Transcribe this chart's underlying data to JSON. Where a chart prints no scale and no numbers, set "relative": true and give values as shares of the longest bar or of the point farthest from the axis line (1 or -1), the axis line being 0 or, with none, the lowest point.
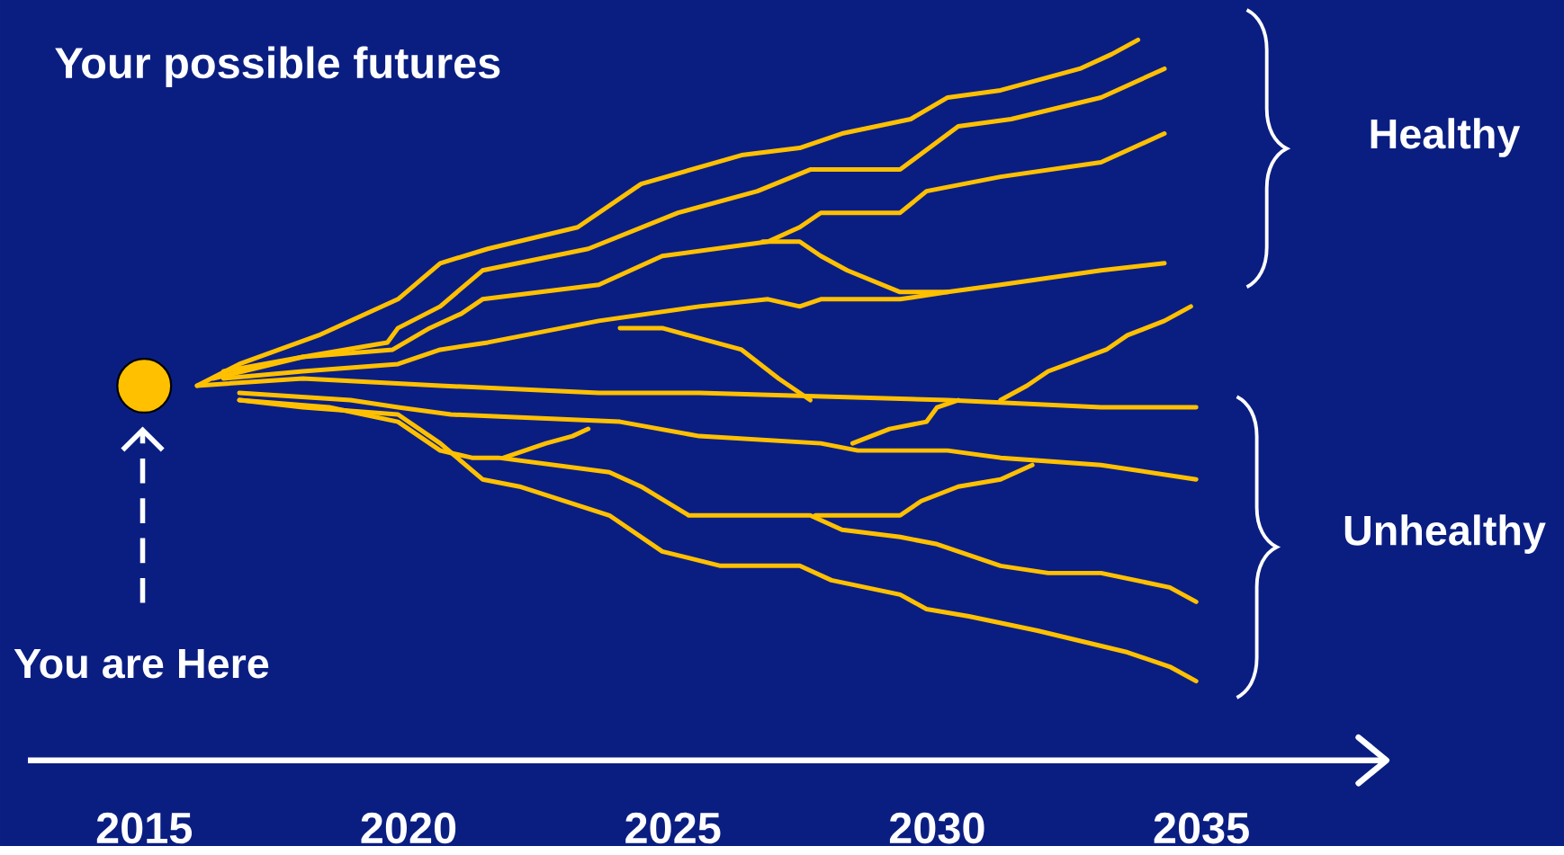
{
  "chart_data": {
    "type": "line",
    "title": "Your possible futures",
    "relative": true,
    "marker": "none",
    "tick_labels": "x",
    "xlim": [
      2012.8,
      2038.5
    ],
    "xticks": [
      2015,
      2020,
      2025,
      2030,
      2035
    ],
    "annotations": [
      "Healthy",
      "Unhealthy",
      "You are Here"
    ],
    "series": [
      {
        "color": "#ffc000",
        "x": [
          2016.0,
          2016.8,
          2018.3,
          2019.8,
          2020.6,
          2021.5,
          2023.2,
          2024.4,
          2026.3,
          2027.4,
          2028.2,
          2029.5,
          2030.2,
          2031.2,
          2032.7,
          2033.3,
          2033.8
        ],
        "values": [
          0.52,
          0.55,
          0.59,
          0.64,
          0.69,
          0.71,
          0.74,
          0.8,
          0.84,
          0.85,
          0.87,
          0.89,
          0.92,
          0.93,
          0.96,
          0.98,
          1.0
        ]
      },
      {
        "color": "#ffc000",
        "x": [
          2016.3,
          2018.0,
          2019.6,
          2019.8,
          2020.6,
          2021.4,
          2023.4,
          2025.1,
          2026.6,
          2027.6,
          2029.3,
          2030.4,
          2031.4,
          2033.1,
          2034.3
        ],
        "values": [
          0.53,
          0.56,
          0.58,
          0.6,
          0.63,
          0.68,
          0.71,
          0.76,
          0.79,
          0.82,
          0.82,
          0.88,
          0.89,
          0.92,
          0.96
        ]
      },
      {
        "color": "#ffc000",
        "x": [
          2016.5,
          2018.0,
          2019.7,
          2020.4,
          2021.0,
          2021.4,
          2023.6,
          2024.8,
          2026.8,
          2027.4,
          2027.8,
          2029.3,
          2029.8,
          2031.2,
          2033.1,
          2034.3
        ],
        "values": [
          0.54,
          0.56,
          0.57,
          0.6,
          0.62,
          0.64,
          0.66,
          0.7,
          0.72,
          0.74,
          0.76,
          0.76,
          0.79,
          0.81,
          0.83,
          0.87
        ]
      },
      {
        "color": "#ffc000",
        "x": [
          2026.7,
          2027.4,
          2027.8,
          2028.3,
          2029.3,
          2030.2,
          2031.2,
          2033.1,
          2034.3
        ],
        "values": [
          0.72,
          0.72,
          0.7,
          0.68,
          0.65,
          0.65,
          0.66,
          0.68,
          0.69
        ]
      },
      {
        "color": "#ffc000",
        "x": [
          2016.5,
          2018.0,
          2019.8,
          2020.6,
          2021.5,
          2023.6,
          2025.5,
          2026.8,
          2027.4,
          2027.8,
          2029.3,
          2030.2
        ],
        "values": [
          0.53,
          0.54,
          0.55,
          0.57,
          0.58,
          0.61,
          0.63,
          0.64,
          0.63,
          0.64,
          0.64,
          0.65
        ]
      },
      {
        "color": "#ffc000",
        "x": [
          2024.0,
          2024.8,
          2026.3,
          2027.0,
          2027.6
        ],
        "values": [
          0.6,
          0.6,
          0.57,
          0.53,
          0.5
        ]
      },
      {
        "color": "#ffc000",
        "x": [
          2016.0,
          2018.0,
          2020.6,
          2023.6,
          2025.5,
          2030.2,
          2033.1,
          2034.9
        ],
        "values": [
          0.52,
          0.53,
          0.52,
          0.51,
          0.51,
          0.5,
          0.49,
          0.49
        ]
      },
      {
        "color": "#ffc000",
        "x": [
          2031.2,
          2031.7,
          2032.1,
          2033.2,
          2033.6,
          2034.3,
          2034.8
        ],
        "values": [
          0.5,
          0.52,
          0.54,
          0.57,
          0.59,
          0.61,
          0.63
        ]
      },
      {
        "color": "#ffc000",
        "x": [
          2016.8,
          2018.9,
          2019.8,
          2020.8,
          2024.0,
          2025.5,
          2027.8,
          2028.5,
          2030.2,
          2031.2,
          2033.1,
          2034.9
        ],
        "values": [
          0.51,
          0.5,
          0.49,
          0.48,
          0.47,
          0.45,
          0.44,
          0.43,
          0.43,
          0.42,
          0.41,
          0.39
        ]
      },
      {
        "color": "#ffc000",
        "x": [
          2028.4,
          2029.1,
          2029.8,
          2030.0,
          2030.4
        ],
        "values": [
          0.44,
          0.46,
          0.47,
          0.49,
          0.5
        ]
      },
      {
        "color": "#ffc000",
        "x": [
          2016.8,
          2018.5,
          2019.8,
          2020.6,
          2021.2,
          2021.7,
          2023.8,
          2024.4,
          2025.3,
          2027.6,
          2028.2,
          2029.3,
          2030.0,
          2031.2,
          2032.1,
          2033.1,
          2034.4,
          2034.9
        ],
        "values": [
          0.5,
          0.49,
          0.47,
          0.43,
          0.42,
          0.42,
          0.4,
          0.38,
          0.34,
          0.34,
          0.32,
          0.31,
          0.3,
          0.27,
          0.26,
          0.26,
          0.24,
          0.22
        ]
      },
      {
        "color": "#ffc000",
        "x": [
          2021.8,
          2022.6,
          2023.1,
          2023.4
        ],
        "values": [
          0.42,
          0.44,
          0.45,
          0.46
        ]
      },
      {
        "color": "#ffc000",
        "x": [
          2027.7,
          2029.3,
          2029.7,
          2030.4,
          2031.2,
          2031.8
        ],
        "values": [
          0.34,
          0.34,
          0.36,
          0.38,
          0.39,
          0.41
        ]
      },
      {
        "color": "#ffc000",
        "x": [
          2016.8,
          2018.0,
          2019.8,
          2020.6,
          2021.4,
          2022.1,
          2023.8,
          2024.8,
          2025.9,
          2027.4,
          2028.0,
          2029.3,
          2029.8,
          2030.6,
          2031.9,
          2033.6,
          2034.4,
          2034.9
        ],
        "values": [
          0.5,
          0.49,
          0.48,
          0.44,
          0.39,
          0.38,
          0.34,
          0.29,
          0.27,
          0.27,
          0.25,
          0.23,
          0.21,
          0.2,
          0.18,
          0.15,
          0.13,
          0.11
        ]
      },
      {
        "type": "scatter",
        "color": "#ffc000",
        "x": [
          2015
        ],
        "values": [
          0.52
        ]
      }
    ]
  }
}
